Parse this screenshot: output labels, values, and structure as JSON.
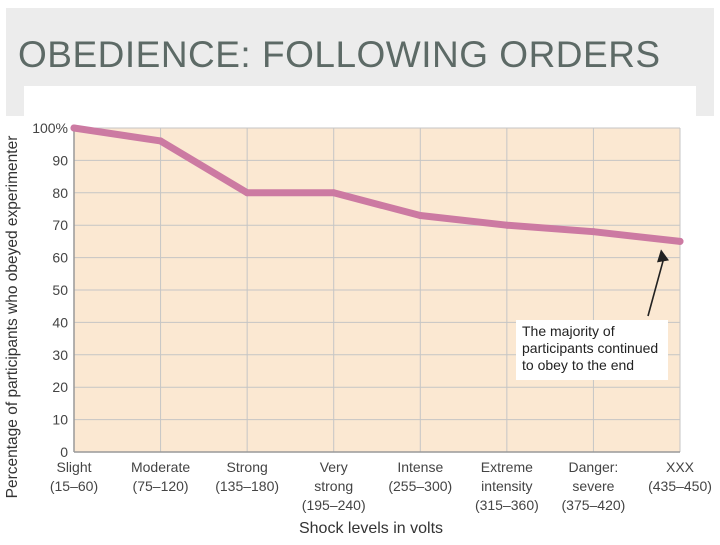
{
  "slide": {
    "title": "OBEDIENCE: FOLLOWING ORDERS"
  },
  "chart_data": {
    "type": "line",
    "categories": [
      [
        "Slight",
        "(15–60)"
      ],
      [
        "Moderate",
        "(75–120)"
      ],
      [
        "Strong",
        "(135–180)"
      ],
      [
        "Very",
        "strong",
        "(195–240)"
      ],
      [
        "Intense",
        "(255–300)"
      ],
      [
        "Extreme",
        "intensity",
        "(315–360)"
      ],
      [
        "Danger:",
        "severe",
        "(375–420)"
      ],
      [
        "XXX",
        "(435–450)"
      ]
    ],
    "x": [
      0,
      1,
      2,
      3,
      4,
      5,
      6,
      7
    ],
    "values": [
      100,
      96,
      80,
      80,
      73,
      70,
      68,
      65
    ],
    "yticks": [
      0,
      10,
      20,
      30,
      40,
      50,
      60,
      70,
      80,
      90,
      100
    ],
    "ytick_labels": [
      "0",
      "10",
      "20",
      "30",
      "40",
      "50",
      "60",
      "70",
      "80",
      "90",
      "100%"
    ],
    "ylim": [
      0,
      100
    ],
    "xlabel": "Shock levels in volts",
    "ylabel": "Percentage of participants who obeyed experimenter",
    "annotation": [
      "The majority of",
      "participants continued",
      "to obey to the end"
    ],
    "colors": {
      "line": "#cc7aa2",
      "plot_bg": "#fbe8d2",
      "grid": "#c5c5c5"
    }
  }
}
